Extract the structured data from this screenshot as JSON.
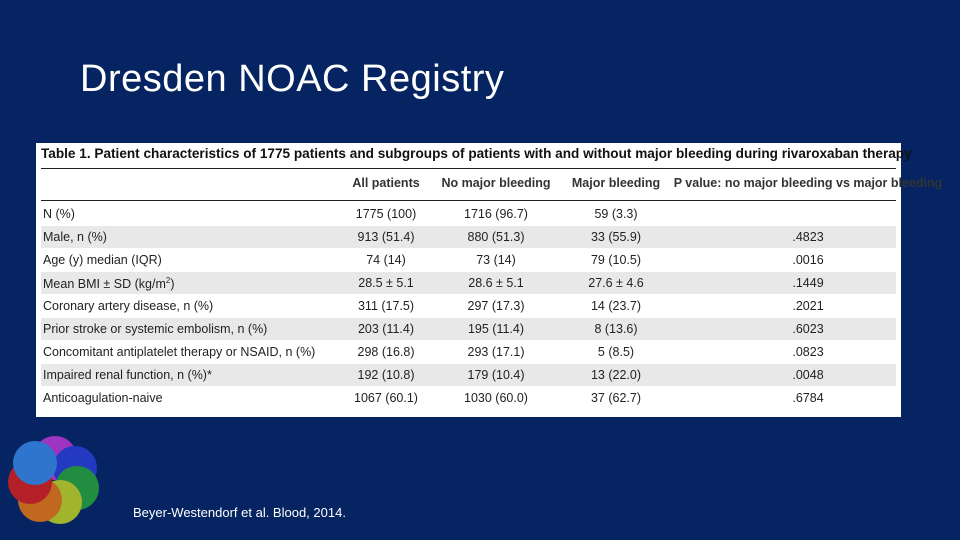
{
  "slide": {
    "title": "Dresden NOAC Registry",
    "table": {
      "caption": "Table 1. Patient characteristics of 1775 patients and subgroups of patients with and without major bleeding during rivaroxaban therapy",
      "headers": [
        "All patients",
        "No major bleeding",
        "Major bleeding",
        "P value: no major bleeding vs major bleeding"
      ],
      "rows": [
        {
          "label": "N (%)",
          "cells": [
            "1775 (100)",
            "1716 (96.7)",
            "59 (3.3)"
          ]
        },
        {
          "label": "Male, n (%)",
          "cells": [
            "913 (51.4)",
            "880 (51.3)",
            "33 (55.9)",
            ".4823"
          ]
        },
        {
          "label": "Age (y) median (IQR)",
          "cells": [
            "74 (14)",
            "73 (14)",
            "79 (10.5)",
            ".0016"
          ]
        },
        {
          "label": "Mean BMI ± SD (kg/m",
          "label_sup": "2",
          "label_tail": ")",
          "cells": [
            "28.5 ± 5.1",
            "28.6 ± 5.1",
            "27.6 ± 4.6",
            ".1449"
          ]
        },
        {
          "label": "Coronary artery disease, n (%)",
          "cells": [
            "311 (17.5)",
            "297 (17.3)",
            "14 (23.7)",
            ".2021"
          ]
        },
        {
          "label": "Prior stroke or systemic embolism, n (%)",
          "cells": [
            "203 (11.4)",
            "195 (11.4)",
            "8 (13.6)",
            ".6023"
          ]
        },
        {
          "label": "Concomitant antiplatelet therapy or NSAID, n (%)",
          "cells": [
            "298 (16.8)",
            "293 (17.1)",
            "5 (8.5)",
            ".0823"
          ]
        },
        {
          "label": "Impaired renal function, n (%)*",
          "cells": [
            "192 (10.8)",
            "179 (10.4)",
            "13 (22.0)",
            ".0048"
          ]
        },
        {
          "label": "Anticoagulation-naive",
          "cells": [
            "1067 (60.1)",
            "1030 (60.0)",
            "37 (62.7)",
            ".6784"
          ]
        }
      ]
    },
    "citation": "Beyer-Westendorf et al. Blood, 2014."
  }
}
